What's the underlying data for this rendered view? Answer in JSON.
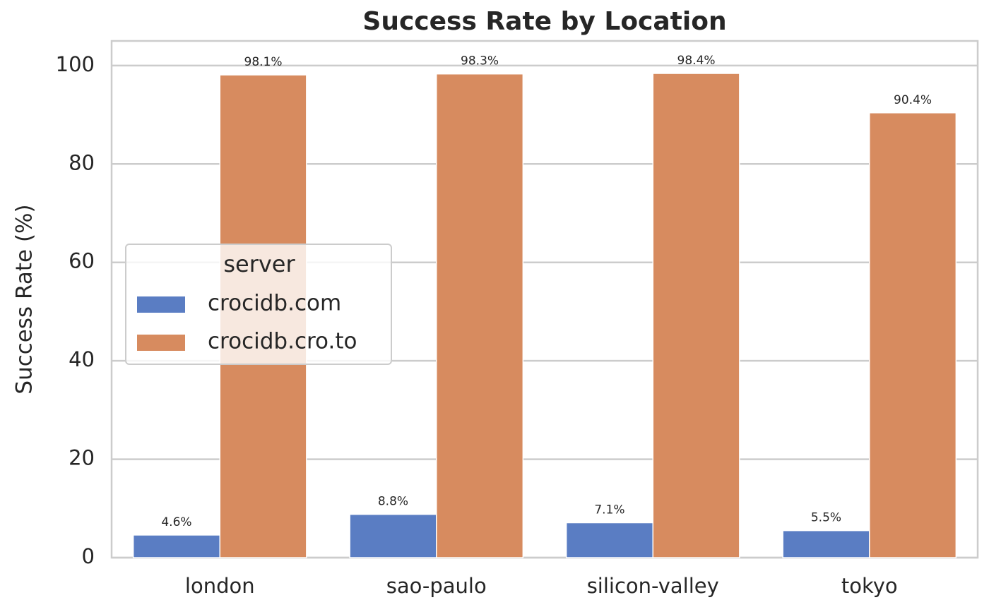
{
  "chart_data": {
    "type": "bar",
    "title": "Success Rate by Location",
    "ylabel": "Success Rate (%)",
    "categories": [
      "london",
      "sao-paulo",
      "silicon-valley",
      "tokyo"
    ],
    "legend_title": "server",
    "legend_loc": "center left",
    "grid": true,
    "series": [
      {
        "name": "crocidb.com",
        "color": "#5a7dc3",
        "values": [
          4.6,
          8.8,
          7.1,
          5.5
        ],
        "value_labels": [
          "4.6%",
          "8.8%",
          "7.1%",
          "5.5%"
        ]
      },
      {
        "name": "crocidb.cro.to",
        "color": "#d78b5f",
        "values": [
          98.1,
          98.3,
          98.4,
          90.4
        ],
        "value_labels": [
          "98.1%",
          "98.3%",
          "98.4%",
          "90.4%"
        ]
      }
    ],
    "ylim": [
      0,
      105
    ],
    "yticks": [
      0,
      20,
      40,
      60,
      80,
      100
    ]
  }
}
